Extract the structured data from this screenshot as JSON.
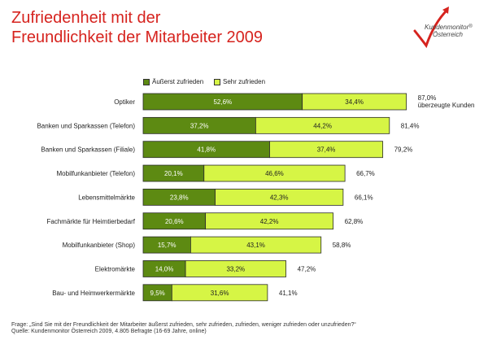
{
  "title_line1": "Zufriedenheit mit der",
  "title_line2": "Freundlichkeit der Mitarbeiter 2009",
  "logo": {
    "line1": "Kundenmonitor",
    "line2": "Österreich",
    "reg": "®"
  },
  "colors": {
    "dark": "#5d8a12",
    "light": "#d6f545",
    "border": "#2b2b2b",
    "title": "#d6231e"
  },
  "chart_data": {
    "type": "bar",
    "stacked": true,
    "orientation": "horizontal",
    "categories": [
      "Optiker",
      "Banken und Sparkassen (Telefon)",
      "Banken und Sparkassen (Filiale)",
      "Mobilfunkanbieter (Telefon)",
      "Lebensmittelmärkte",
      "Fachmärkte für Heimtierbedarf",
      "Mobilfunkanbieter (Shop)",
      "Elektromärkte",
      "Bau- und Heimwerkermärkte"
    ],
    "series": [
      {
        "name": "Äußerst zufrieden",
        "values": [
          52.6,
          37.2,
          41.8,
          20.1,
          23.8,
          20.6,
          15.7,
          14.0,
          9.5
        ],
        "labels": [
          "52,6%",
          "37,2%",
          "41,8%",
          "20,1%",
          "23,8%",
          "20,6%",
          "15,7%",
          "14,0%",
          "9,5%"
        ]
      },
      {
        "name": "Sehr zufrieden",
        "values": [
          34.4,
          44.2,
          37.4,
          46.6,
          42.3,
          42.2,
          43.1,
          33.2,
          31.6
        ],
        "labels": [
          "34,4%",
          "44,2%",
          "37,4%",
          "46,6%",
          "42,3%",
          "42,2%",
          "43,1%",
          "33,2%",
          "31,6%"
        ]
      }
    ],
    "totals": [
      87.0,
      81.4,
      79.2,
      66.7,
      66.1,
      62.8,
      58.8,
      47.2,
      41.1
    ],
    "total_labels": [
      "87,0%",
      "81,4%",
      "79,2%",
      "66,7%",
      "66,1%",
      "62,8%",
      "58,8%",
      "47,2%",
      "41,1%"
    ],
    "first_total_note": "überzeugte Kunden",
    "legend_position": "top",
    "grid": false
  },
  "footer_line1": "Frage: „Sind Sie mit der Freundlichkeit der Mitarbeiter äußerst zufrieden, sehr zufrieden, zufrieden, weniger zufrieden oder unzufrieden?“",
  "footer_line2": "Quelle: Kundenmonitor Österreich 2009, 4.805 Befragte (16-69 Jahre, online)"
}
